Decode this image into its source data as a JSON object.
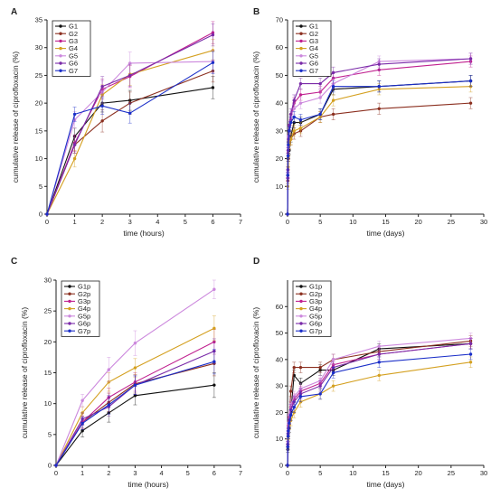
{
  "chart_data": [
    {
      "panel": "A",
      "type": "line",
      "xlabel": "time (hours)",
      "ylabel": "cumulative release of ciprofloxacin (%)",
      "xlim": [
        0,
        7
      ],
      "ylim": [
        0,
        35
      ],
      "xticks": [
        0,
        1,
        2,
        3,
        4,
        5,
        6,
        7
      ],
      "yticks": [
        0,
        5,
        10,
        15,
        20,
        25,
        30,
        35
      ],
      "legend": "top-left",
      "series": [
        {
          "name": "G1",
          "color": "#111111",
          "x": [
            0,
            1,
            2,
            3,
            6
          ],
          "y": [
            0,
            14,
            20,
            20.5,
            22.8
          ],
          "err": [
            0,
            1.5,
            1.6,
            1.8,
            2.0
          ]
        },
        {
          "name": "G2",
          "color": "#8b2f1f",
          "x": [
            0,
            1,
            2,
            3,
            6
          ],
          "y": [
            0,
            12.5,
            16.8,
            20.0,
            25.8
          ],
          "err": [
            0,
            1.5,
            2.0,
            2.0,
            2.0
          ]
        },
        {
          "name": "G3",
          "color": "#c0208f",
          "x": [
            0,
            1,
            2,
            3,
            6
          ],
          "y": [
            0,
            12.8,
            22.5,
            24.8,
            32.7
          ],
          "err": [
            0,
            1.5,
            1.8,
            2.0,
            2.0
          ]
        },
        {
          "name": "G4",
          "color": "#d4a020",
          "x": [
            0,
            1,
            2,
            3,
            6
          ],
          "y": [
            0,
            10.0,
            21.5,
            25.2,
            29.5
          ],
          "err": [
            0,
            1.5,
            1.8,
            2.0,
            2.0
          ]
        },
        {
          "name": "G5",
          "color": "#cc88dd",
          "x": [
            0,
            1,
            2,
            3,
            6
          ],
          "y": [
            0,
            17.0,
            22.0,
            27.2,
            27.5
          ],
          "err": [
            0,
            1.5,
            2.0,
            2.0,
            2.0
          ]
        },
        {
          "name": "G6",
          "color": "#7a2aa8",
          "x": [
            0,
            1,
            2,
            3,
            6
          ],
          "y": [
            0,
            12.5,
            23.0,
            25.0,
            32.3
          ],
          "err": [
            0,
            1.5,
            1.8,
            2.0,
            2.0
          ]
        },
        {
          "name": "G7",
          "color": "#1a2ec8",
          "x": [
            0,
            1,
            2,
            3,
            6
          ],
          "y": [
            0,
            18.0,
            19.5,
            18.2,
            27.3
          ],
          "err": [
            0,
            1.3,
            1.5,
            1.8,
            2.0
          ]
        }
      ]
    },
    {
      "panel": "B",
      "type": "line",
      "xlabel": "time (days)",
      "ylabel": "cumulative release of ciprofloxacin (%)",
      "xlim": [
        0,
        30
      ],
      "ylim": [
        0,
        70
      ],
      "xticks": [
        0,
        5,
        10,
        15,
        20,
        25,
        30
      ],
      "yticks": [
        0,
        10,
        20,
        30,
        40,
        50,
        60,
        70
      ],
      "legend": "top-left",
      "series": [
        {
          "name": "G1",
          "color": "#111111",
          "x": [
            0,
            0.04,
            0.08,
            0.125,
            0.25,
            0.5,
            1,
            2,
            5,
            7,
            14,
            28
          ],
          "y": [
            0,
            14,
            20,
            21,
            23,
            28,
            33,
            33,
            36,
            45,
            46,
            48
          ],
          "err": [
            0,
            1,
            1,
            1,
            1.5,
            2,
            2,
            2,
            2,
            2,
            2,
            2
          ]
        },
        {
          "name": "G2",
          "color": "#8b2f1f",
          "x": [
            0,
            0.04,
            0.08,
            0.125,
            0.25,
            0.5,
            1,
            2,
            5,
            7,
            14,
            28
          ],
          "y": [
            0,
            12,
            16,
            20,
            25,
            27,
            29,
            30,
            35,
            36,
            38,
            40
          ],
          "err": [
            0,
            1,
            1,
            1,
            1.5,
            2,
            2,
            2,
            2,
            2,
            2,
            2
          ]
        },
        {
          "name": "G3",
          "color": "#c0208f",
          "x": [
            0,
            0.04,
            0.08,
            0.125,
            0.25,
            0.5,
            1,
            2,
            5,
            7,
            14,
            28
          ],
          "y": [
            0,
            13,
            22,
            25,
            30,
            34,
            40,
            43,
            44,
            49,
            52,
            55
          ],
          "err": [
            0,
            1,
            1,
            1,
            1.5,
            2,
            2,
            2,
            2,
            2,
            2,
            2
          ]
        },
        {
          "name": "G4",
          "color": "#d4a020",
          "x": [
            0,
            0.04,
            0.08,
            0.125,
            0.25,
            0.5,
            1,
            2,
            5,
            7,
            14,
            28
          ],
          "y": [
            0,
            10,
            17,
            21,
            25,
            27,
            30,
            31,
            35,
            41,
            45,
            46
          ],
          "err": [
            0,
            1,
            1,
            1,
            1.5,
            2,
            2,
            2,
            2,
            2,
            2,
            2
          ]
        },
        {
          "name": "G5",
          "color": "#cc88dd",
          "x": [
            0,
            0.04,
            0.08,
            0.125,
            0.25,
            0.5,
            1,
            2,
            5,
            7,
            14,
            28
          ],
          "y": [
            0,
            15,
            24,
            28,
            32,
            35,
            38,
            40,
            42,
            47,
            55,
            56
          ],
          "err": [
            0,
            1,
            1,
            1,
            1.5,
            2,
            2,
            2,
            2,
            2,
            2,
            2
          ]
        },
        {
          "name": "G6",
          "color": "#7a2aa8",
          "x": [
            0,
            0.04,
            0.08,
            0.125,
            0.25,
            0.5,
            1,
            2,
            5,
            7,
            14,
            28
          ],
          "y": [
            0,
            16,
            23,
            27,
            32,
            36,
            41,
            47,
            47,
            51,
            54,
            56
          ],
          "err": [
            0,
            1,
            1,
            1,
            1.5,
            2,
            2,
            2,
            2,
            2,
            2,
            2
          ]
        },
        {
          "name": "G7",
          "color": "#1a2ec8",
          "x": [
            0,
            0.04,
            0.08,
            0.125,
            0.25,
            0.5,
            1,
            2,
            5,
            7,
            14,
            28
          ],
          "y": [
            0,
            14,
            21,
            25,
            30,
            33,
            35,
            34,
            36,
            46,
            46,
            48
          ],
          "err": [
            0,
            1,
            1,
            1,
            1.5,
            2,
            2,
            2,
            2,
            2,
            2,
            2
          ]
        }
      ]
    },
    {
      "panel": "C",
      "type": "line",
      "xlabel": "time (hours)",
      "ylabel": "cumulative release of ciprofloxacin (%)",
      "xlim": [
        0,
        7
      ],
      "ylim": [
        0,
        30
      ],
      "xticks": [
        0,
        1,
        2,
        3,
        4,
        5,
        6,
        7
      ],
      "yticks": [
        0,
        5,
        10,
        15,
        20,
        25,
        30
      ],
      "legend": "top-left",
      "series": [
        {
          "name": "G1p",
          "color": "#111111",
          "x": [
            0,
            1,
            2,
            3,
            6
          ],
          "y": [
            0,
            5.6,
            8.5,
            11.3,
            13.0
          ],
          "err": [
            0,
            1.0,
            1.5,
            1.5,
            2.0
          ]
        },
        {
          "name": "G2p",
          "color": "#8b2f1f",
          "x": [
            0,
            1,
            2,
            3,
            6
          ],
          "y": [
            0,
            7.0,
            10.2,
            13.2,
            16.5
          ],
          "err": [
            0,
            1.0,
            1.5,
            1.5,
            2.0
          ]
        },
        {
          "name": "G3p",
          "color": "#c0208f",
          "x": [
            0,
            1,
            2,
            3,
            6
          ],
          "y": [
            0,
            7.0,
            11.0,
            13.5,
            20.0
          ],
          "err": [
            0,
            1.0,
            1.5,
            1.5,
            2.0
          ]
        },
        {
          "name": "G4p",
          "color": "#d4a020",
          "x": [
            0,
            1,
            2,
            3,
            6
          ],
          "y": [
            0,
            8.5,
            13.5,
            15.8,
            22.2
          ],
          "err": [
            0,
            1.0,
            1.5,
            1.5,
            2.0
          ]
        },
        {
          "name": "G5p",
          "color": "#cc88dd",
          "x": [
            0,
            1,
            2,
            3,
            6
          ],
          "y": [
            0,
            10.5,
            15.5,
            19.8,
            28.5
          ],
          "err": [
            0,
            1.0,
            2.0,
            2.0,
            1.5
          ]
        },
        {
          "name": "G6p",
          "color": "#7a2aa8",
          "x": [
            0,
            1,
            2,
            3,
            6
          ],
          "y": [
            0,
            7.5,
            9.5,
            13.0,
            18.5
          ],
          "err": [
            0,
            1.0,
            1.5,
            1.5,
            2.0
          ]
        },
        {
          "name": "G7p",
          "color": "#1a2ec8",
          "x": [
            0,
            1,
            2,
            3,
            6
          ],
          "y": [
            0,
            6.8,
            9.8,
            13.0,
            16.8
          ],
          "err": [
            0,
            1.0,
            1.5,
            1.5,
            2.0
          ]
        }
      ]
    },
    {
      "panel": "D",
      "type": "line",
      "xlabel": "time (days)",
      "ylabel": "cumulative release of ciprofloxacin (%)",
      "xlim": [
        0,
        30
      ],
      "ylim": [
        0,
        70
      ],
      "xticks": [
        0,
        5,
        10,
        15,
        20,
        25,
        30
      ],
      "yticks": [
        0,
        10,
        20,
        30,
        40,
        50,
        60
      ],
      "legend": "top-left",
      "series": [
        {
          "name": "G1p",
          "color": "#111111",
          "x": [
            0,
            0.04,
            0.08,
            0.125,
            0.25,
            0.5,
            1,
            2,
            5,
            7,
            14,
            28
          ],
          "y": [
            0,
            6,
            9,
            11,
            14,
            20,
            34,
            31,
            36,
            36,
            44,
            46
          ],
          "err": [
            0,
            1,
            1,
            1,
            1.5,
            2,
            2,
            2,
            2,
            2,
            2,
            2
          ]
        },
        {
          "name": "G2p",
          "color": "#8b2f1f",
          "x": [
            0,
            0.04,
            0.08,
            0.125,
            0.25,
            0.5,
            1,
            2,
            5,
            7,
            14,
            28
          ],
          "y": [
            0,
            7,
            11,
            13,
            17,
            28,
            37,
            37,
            37,
            40,
            43,
            47
          ],
          "err": [
            0,
            1,
            1,
            1,
            1.5,
            2,
            2,
            2,
            2,
            2,
            2,
            2
          ]
        },
        {
          "name": "G3p",
          "color": "#c0208f",
          "x": [
            0,
            0.04,
            0.08,
            0.125,
            0.25,
            0.5,
            1,
            2,
            5,
            7,
            14,
            28
          ],
          "y": [
            0,
            8,
            12,
            15,
            18,
            22,
            25,
            28,
            31,
            38,
            42,
            46
          ],
          "err": [
            0,
            1,
            1,
            1,
            1.5,
            2,
            2,
            2,
            2,
            2,
            2,
            2
          ]
        },
        {
          "name": "G4p",
          "color": "#d4a020",
          "x": [
            0,
            0.04,
            0.08,
            0.125,
            0.25,
            0.5,
            1,
            2,
            5,
            7,
            14,
            28
          ],
          "y": [
            0,
            7,
            10,
            13,
            15,
            17,
            20,
            24,
            27,
            30,
            34,
            39
          ],
          "err": [
            0,
            1,
            1,
            1,
            1.5,
            2,
            2,
            2,
            2,
            2,
            2,
            2
          ]
        },
        {
          "name": "G5p",
          "color": "#cc88dd",
          "x": [
            0,
            0.04,
            0.08,
            0.125,
            0.25,
            0.5,
            1,
            2,
            5,
            7,
            14,
            28
          ],
          "y": [
            0,
            9,
            13,
            16,
            19,
            23,
            26,
            29,
            32,
            40,
            45,
            48
          ],
          "err": [
            0,
            1,
            1,
            1,
            1.5,
            2,
            2,
            2,
            2,
            2,
            2,
            2
          ]
        },
        {
          "name": "G6p",
          "color": "#7a2aa8",
          "x": [
            0,
            0.04,
            0.08,
            0.125,
            0.25,
            0.5,
            1,
            2,
            5,
            7,
            14,
            28
          ],
          "y": [
            0,
            8,
            12,
            14,
            17,
            21,
            24,
            27,
            30,
            37,
            42,
            46
          ],
          "err": [
            0,
            1,
            1,
            1,
            1.5,
            2,
            2,
            2,
            2,
            2,
            2,
            2
          ]
        },
        {
          "name": "G7p",
          "color": "#1a2ec8",
          "x": [
            0,
            0.04,
            0.08,
            0.125,
            0.25,
            0.5,
            1,
            2,
            5,
            7,
            14,
            28
          ],
          "y": [
            0,
            7,
            11,
            13,
            16,
            19,
            22,
            26,
            27,
            35,
            39,
            42
          ],
          "err": [
            0,
            1,
            1,
            1,
            1.5,
            2,
            2,
            2,
            2,
            2,
            2,
            2
          ]
        }
      ]
    }
  ]
}
